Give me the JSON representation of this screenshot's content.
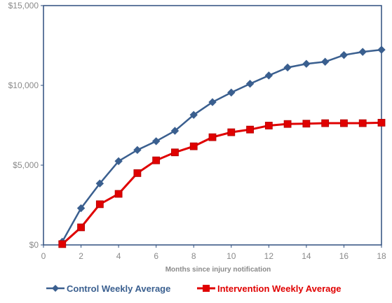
{
  "chart_data": {
    "type": "line",
    "title": "",
    "xlabel": "Months since injury notification",
    "ylabel": "",
    "xlim": [
      0,
      18
    ],
    "ylim": [
      0,
      15000
    ],
    "x_ticks": [
      0,
      2,
      4,
      6,
      8,
      10,
      12,
      14,
      16,
      18
    ],
    "x_tick_labels": [
      "0",
      "2",
      "4",
      "6",
      "8",
      "10",
      "12",
      "14",
      "16",
      "18"
    ],
    "y_ticks": [
      0,
      5000,
      10000,
      15000
    ],
    "y_tick_labels": [
      "$0",
      "$5,000",
      "$10,000",
      "$15,000"
    ],
    "grid": false,
    "legend_position": "bottom",
    "x": [
      1,
      2,
      3,
      4,
      5,
      6,
      7,
      8,
      9,
      10,
      11,
      12,
      13,
      14,
      15,
      16,
      17,
      18
    ],
    "series": [
      {
        "name": "Control Weekly Average",
        "color": "#3a5f8f",
        "marker": "diamond",
        "values": [
          200,
          2300,
          3850,
          5250,
          5950,
          6500,
          7150,
          8150,
          8950,
          9550,
          10100,
          10620,
          11120,
          11350,
          11480,
          11900,
          12100,
          12230
        ]
      },
      {
        "name": "Intervention Weekly Average",
        "color": "#e00000",
        "marker": "square",
        "values": [
          50,
          1100,
          2550,
          3200,
          4500,
          5300,
          5800,
          6180,
          6750,
          7060,
          7230,
          7480,
          7580,
          7600,
          7630,
          7630,
          7630,
          7660
        ]
      }
    ]
  }
}
